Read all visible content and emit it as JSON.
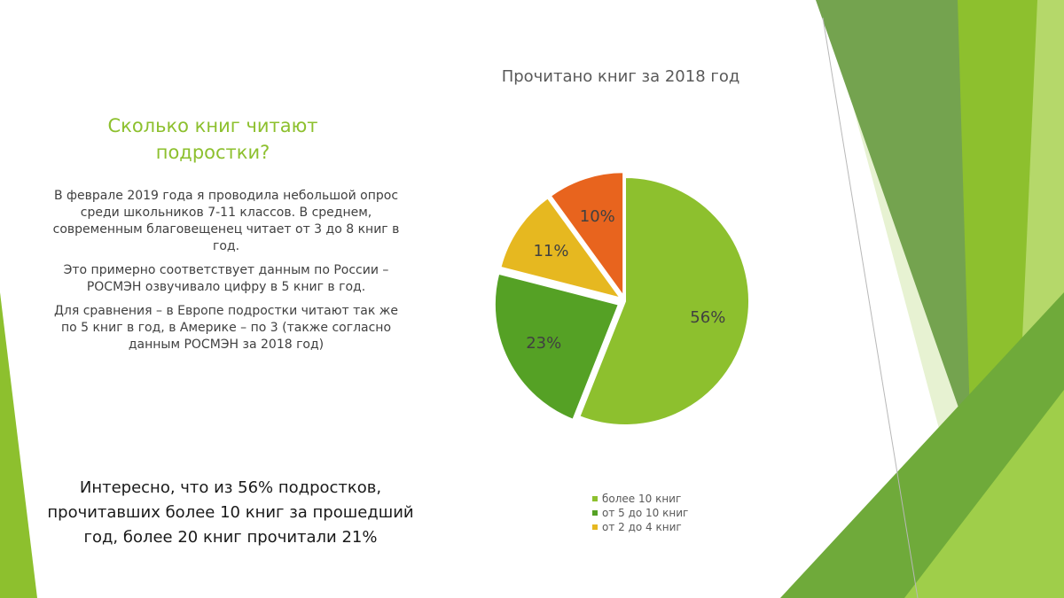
{
  "slide": {
    "title_lines": [
      "Сколько книг читают",
      "подростки?"
    ],
    "paragraphs": [
      "В феврале 2019 года я проводила небольшой опрос среди школьников 7-11 классов. В среднем, современным благовещенец читает от 3 до 8 книг в год.",
      "Это примерно соответствует данным по России – РОСМЭН озвучивало цифру в 5 книг в год.",
      "Для сравнения – в Европе подростки читают так же по 5 книг в год, в Америке – по 3 (также согласно данным РОСМЭН за 2018 год)"
    ],
    "highlight": "Интересно, что из 56% подростков, прочитавших более 10 книг за прошедший год, более 20 книг прочитали 21%"
  },
  "chart_data": {
    "type": "pie",
    "title": "Прочитано книг за 2018 год",
    "slices": [
      {
        "label": "более 10 книг",
        "value": 56,
        "display": "56%",
        "color": "#8dc02e"
      },
      {
        "label": "от 5 до 10 книг",
        "value": 23,
        "display": "23%",
        "color": "#55a125"
      },
      {
        "label": "от 2 до 4 книг",
        "value": 11,
        "display": "11%",
        "color": "#e6b820"
      },
      {
        "label": "",
        "value": 10,
        "display": "10%",
        "color": "#e8641e"
      }
    ],
    "legend": [
      {
        "label": "более 10 книг",
        "color": "#8dc02e"
      },
      {
        "label": "от 5 до 10 книг",
        "color": "#55a125"
      },
      {
        "label": "от 2 до 4 книг",
        "color": "#e6b820"
      }
    ],
    "legend_position": "bottom"
  }
}
